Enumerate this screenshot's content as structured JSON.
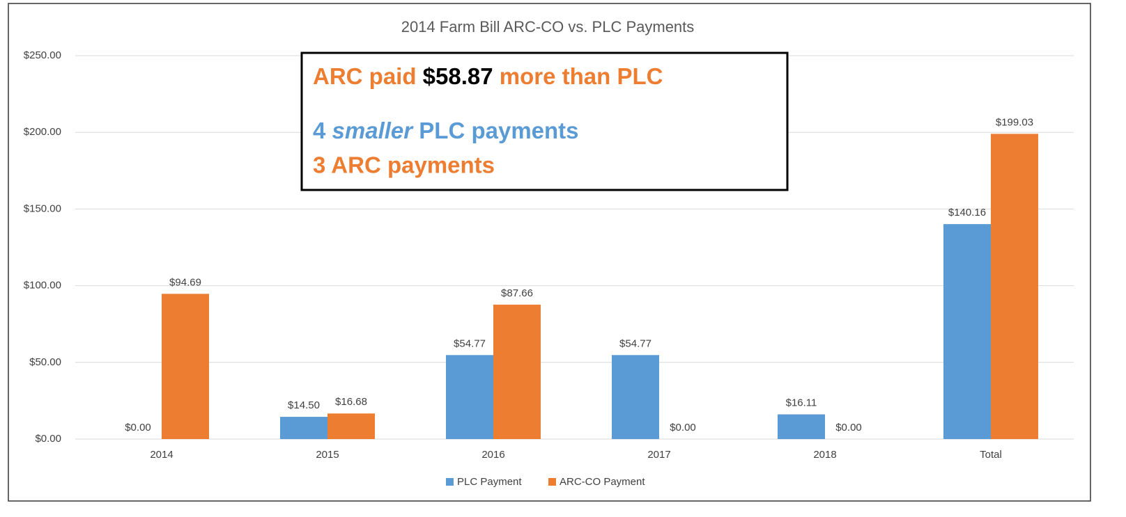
{
  "chart_data": {
    "type": "bar",
    "title": "2014 Farm Bill ARC-CO vs. PLC Payments",
    "categories": [
      "2014",
      "2015",
      "2016",
      "2017",
      "2018",
      "Total"
    ],
    "series": [
      {
        "name": "PLC Payment",
        "color": "#5b9bd5",
        "values": [
          0,
          14.5,
          54.77,
          54.77,
          16.11,
          140.16
        ],
        "value_labels": [
          "$0.00",
          "$14.50",
          "$54.77",
          "$54.77",
          "$16.11",
          "$140.16"
        ]
      },
      {
        "name": "ARC-CO Payment",
        "color": "#ed7d31",
        "values": [
          94.69,
          16.68,
          87.66,
          0,
          0,
          199.03
        ],
        "value_labels": [
          "$94.69",
          "$16.68",
          "$87.66",
          "$0.00",
          "$0.00",
          "$199.03"
        ]
      }
    ],
    "ylim": [
      0,
      250
    ],
    "yticks": [
      {
        "value": 0,
        "label": "$0.00"
      },
      {
        "value": 50,
        "label": "$50.00"
      },
      {
        "value": 100,
        "label": "$100.00"
      },
      {
        "value": 150,
        "label": "$150.00"
      },
      {
        "value": 200,
        "label": "$200.00"
      },
      {
        "value": 250,
        "label": "$250.00"
      }
    ],
    "grid": true,
    "legend": "bottom",
    "annotation": {
      "line1": [
        "ARC paid",
        "$58.87",
        "more than PLC"
      ],
      "line2": [
        "4",
        "smaller",
        "PLC payments"
      ],
      "line3": "3 ARC payments"
    }
  }
}
